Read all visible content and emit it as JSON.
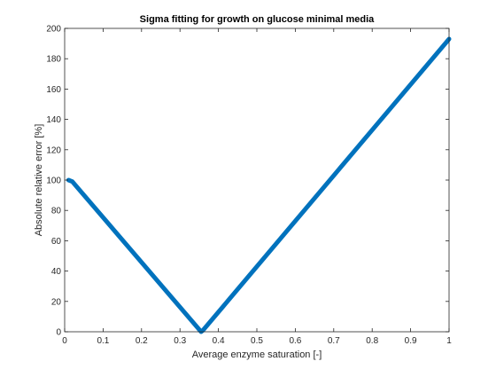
{
  "chart_data": {
    "type": "line",
    "title": "Sigma fitting for growth on glucose minimal media",
    "xlabel": "Average enzyme saturation [-]",
    "ylabel": "Absolute relative error [%]",
    "xlim": [
      0,
      1
    ],
    "ylim": [
      0,
      200
    ],
    "xticks": [
      "0",
      "0.1",
      "0.2",
      "0.3",
      "0.4",
      "0.5",
      "0.6",
      "0.7",
      "0.8",
      "0.9",
      "1"
    ],
    "yticks": [
      "0",
      "20",
      "40",
      "60",
      "80",
      "100",
      "120",
      "140",
      "160",
      "180",
      "200"
    ],
    "grid": false,
    "series": [
      {
        "color": "#0072BD",
        "x": [
          0.01,
          0.02,
          0.355,
          0.36,
          1.0
        ],
        "y": [
          100,
          99,
          0,
          1,
          193
        ]
      }
    ]
  }
}
